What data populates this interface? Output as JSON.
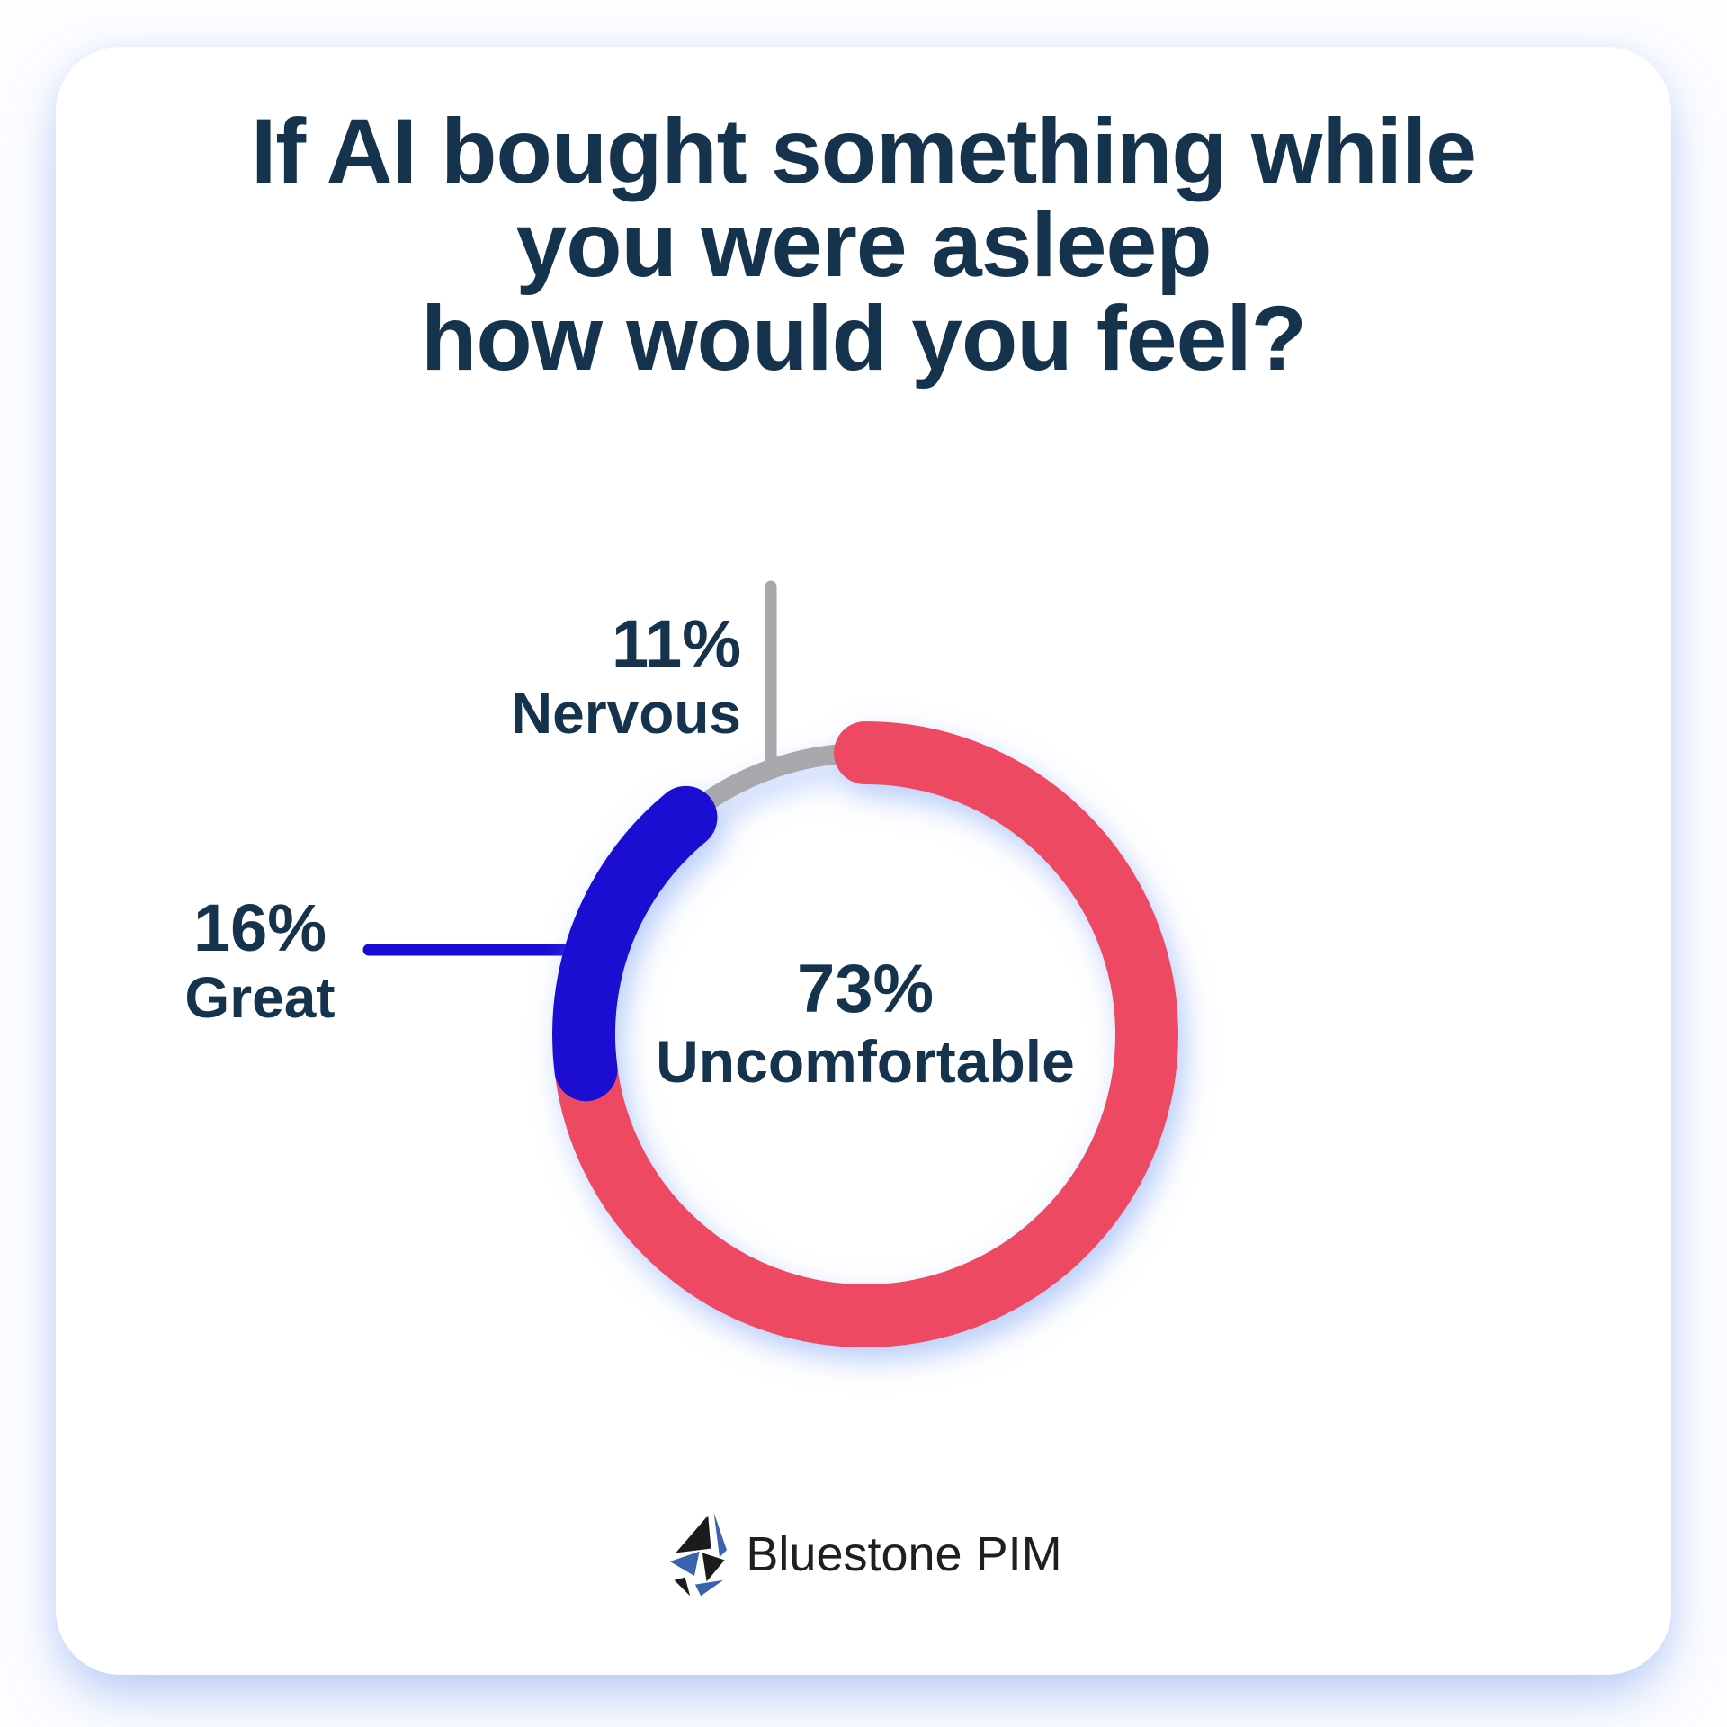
{
  "title": {
    "lines": [
      "If AI bought something while",
      "you were asleep",
      "how would you feel?"
    ]
  },
  "chart_data": {
    "type": "pie",
    "subtype": "donut",
    "title": "If AI bought something while you were asleep how would you feel?",
    "unit": "%",
    "start_angle_deg": 0,
    "clockwise": true,
    "legend": "none",
    "segments": [
      {
        "label": "Uncomfortable",
        "value": 73,
        "color": "#EE4A63",
        "label_placement": "center-of-donut"
      },
      {
        "label": "Great",
        "value": 16,
        "color": "#1A0BD3",
        "label_placement": "left-with-leader-line"
      },
      {
        "label": "Nervous",
        "value": 11,
        "color": "#A8A8AC",
        "label_placement": "top-left-with-leader-line"
      }
    ]
  },
  "labels": {
    "uncomfortable": {
      "pct": "73%",
      "name": "Uncomfortable"
    },
    "great": {
      "pct": "16%",
      "name": "Great"
    },
    "nervous": {
      "pct": "11%",
      "name": "Nervous"
    }
  },
  "footer": {
    "brand": "Bluestone PIM"
  },
  "colors": {
    "heading_navy": "#16334d",
    "card_background": "#ffffff",
    "card_glow": "#7da0ec",
    "logo_blue": "#3a62ae",
    "logo_black": "#1c1a1b"
  }
}
